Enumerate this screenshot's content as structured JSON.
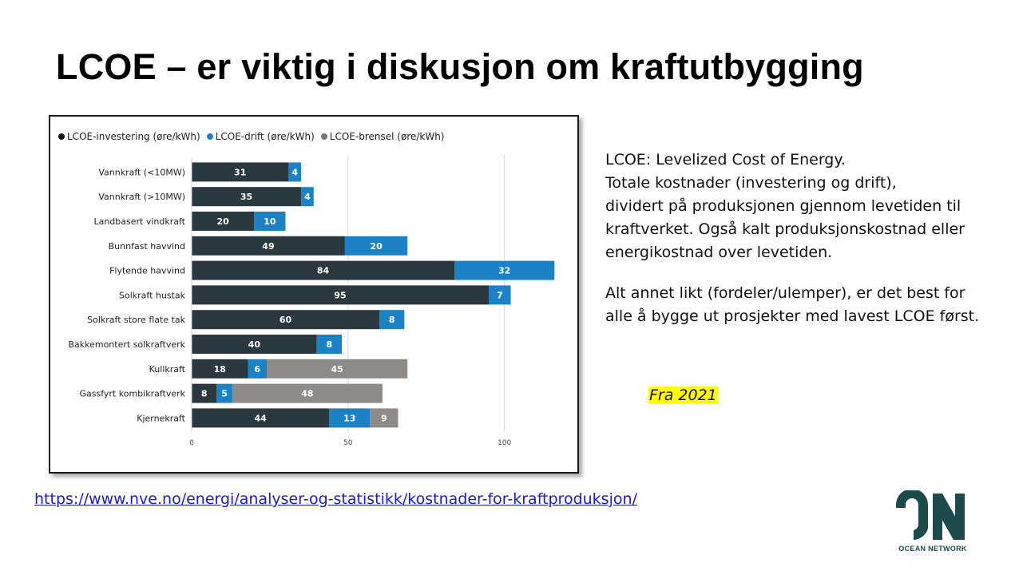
{
  "title": "LCOE – er viktig i diskusjon om kraftutbygging",
  "description": {
    "lines": [
      "LCOE: Levelized Cost of Energy.",
      "Totale kostnader (investering og drift),",
      "dividert på produksjonen gjennom levetiden til",
      "kraftverket. Også kalt produksjonskostnad eller",
      "energikostnad over levetiden."
    ],
    "paragraph2": [
      "Alt annet likt (fordeler/ulemper), er det best for",
      "alle å bygge ut prosjekter med lavest LCOE først."
    ]
  },
  "note": "Fra 2021",
  "source_link": "https://www.nve.no/energi/analyser-og-statistikk/kostnader-for-kraftproduksjon/",
  "logo": {
    "name": "ON",
    "text": "OCEAN NETWORK",
    "color": "#1d4b4b"
  },
  "chart_data": {
    "type": "bar",
    "orientation": "horizontal",
    "stacked": true,
    "categories": [
      "Vannkraft (<10MW)",
      "Vannkraft (>10MW)",
      "Landbasert vindkraft",
      "Bunnfast havvind",
      "Flytende havvind",
      "Solkraft hustak",
      "Solkraft store flate tak",
      "Bakkemontert solkraftverk",
      "Kullkraft",
      "Gassfyrt kombikraftverk",
      "Kjernekraft"
    ],
    "series": [
      {
        "name": "LCOE-investering (øre/kWh)",
        "color": "#2a3840",
        "values": [
          31,
          35,
          20,
          49,
          84,
          95,
          60,
          40,
          18,
          8,
          44
        ]
      },
      {
        "name": "LCOE-drift (øre/kWh)",
        "color": "#1b82c5",
        "values": [
          4,
          4,
          10,
          20,
          32,
          7,
          8,
          8,
          6,
          5,
          13
        ]
      },
      {
        "name": "LCOE-brensel (øre/kWh)",
        "color": "#8e8a88",
        "values": [
          null,
          null,
          null,
          null,
          null,
          null,
          null,
          null,
          45,
          48,
          9
        ]
      }
    ],
    "legend_dot_colors": [
      "#111111",
      "#1b82c5",
      "#777777"
    ],
    "xticks": [
      0,
      50,
      100
    ],
    "xlim": [
      0,
      120
    ],
    "grid": "vertical",
    "legend_position": "top-left"
  }
}
